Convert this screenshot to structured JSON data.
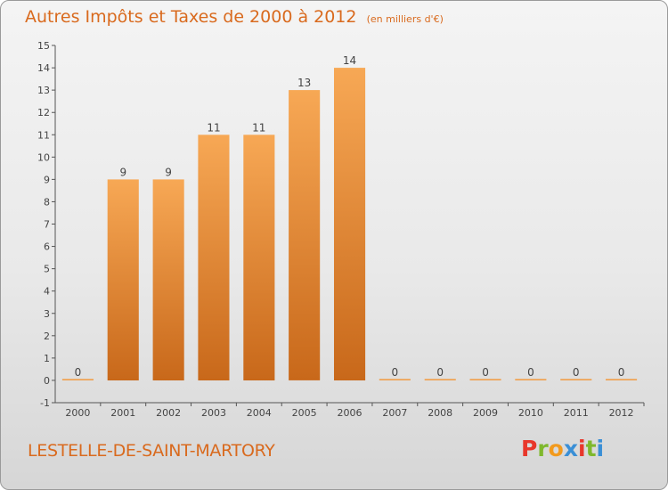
{
  "header": {
    "title": "Autres Impôts et Taxes de 2000 à 2012",
    "subtitle": "(en milliers d'€)"
  },
  "footer": {
    "commune": "LESTELLE-DE-SAINT-MARTORY",
    "logo_letters": [
      "P",
      "r",
      "o",
      "x",
      "i",
      "t",
      "i"
    ],
    "logo_colors": [
      "#e8372b",
      "#7fb82d",
      "#f29a1d",
      "#3a8fd6",
      "#e8372b",
      "#7fb82d",
      "#3a8fd6"
    ]
  },
  "chart_data": {
    "type": "bar",
    "categories": [
      "2000",
      "2001",
      "2002",
      "2003",
      "2004",
      "2005",
      "2006",
      "2007",
      "2008",
      "2009",
      "2010",
      "2011",
      "2012"
    ],
    "values": [
      0,
      9,
      9,
      11,
      11,
      13,
      14,
      0,
      0,
      0,
      0,
      0,
      0
    ],
    "data_labels": [
      "0",
      "9",
      "9",
      "11",
      "11",
      "13",
      "14",
      "0",
      "0",
      "0",
      "0",
      "0",
      "0"
    ],
    "y_ticks": [
      "-1",
      "0",
      "1",
      "2",
      "3",
      "4",
      "5",
      "6",
      "7",
      "8",
      "9",
      "10",
      "11",
      "12",
      "13",
      "14",
      "15"
    ],
    "ylim": [
      -1,
      15
    ],
    "grid": false,
    "bar_color": "#f29a3e"
  }
}
